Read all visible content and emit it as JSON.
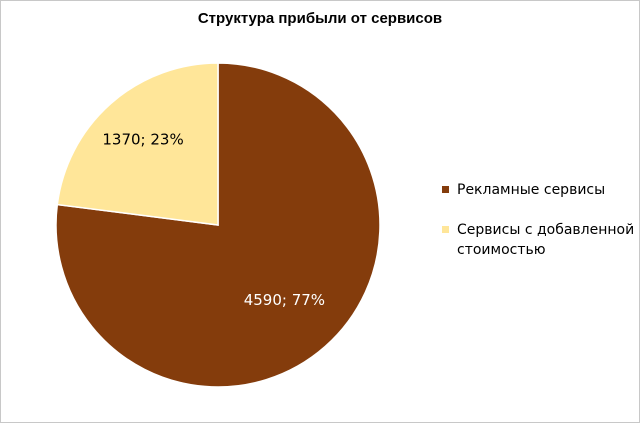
{
  "chart_data": {
    "type": "pie",
    "title": "Структура прибыли от сервисов",
    "categories": [
      "Рекламные сервисы",
      "Сервисы с добавленной стоимостью"
    ],
    "values": [
      4590,
      1370
    ],
    "percents": [
      77,
      23
    ],
    "data_labels": [
      "4590; 77%",
      "1370; 23%"
    ],
    "colors": [
      "#843C0C",
      "#FFE699"
    ],
    "label_colors": [
      "#ffffff",
      "#000000"
    ],
    "legend_position": "right",
    "start_angle": "12 o'clock, clockwise"
  }
}
